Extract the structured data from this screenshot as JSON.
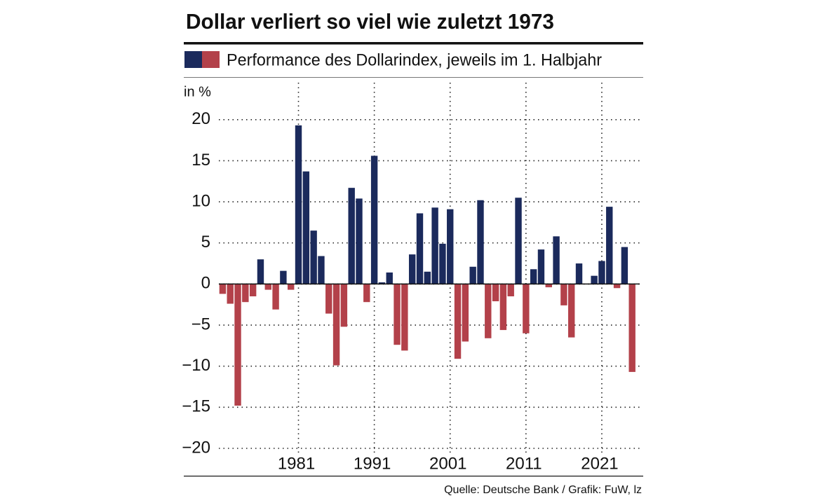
{
  "chart_data": {
    "type": "bar",
    "title": "Dollar verliert so viel wie zuletzt 1973",
    "legend_label": "Performance des Dollarindex, jeweils im 1. Halbjahr",
    "y_label": "in %",
    "source": "Quelle: Deutsche Bank / Grafik: FuW, lz",
    "positive_color": "#1b2a5c",
    "negative_color": "#b3414a",
    "x": [
      1971,
      1972,
      1973,
      1974,
      1975,
      1976,
      1977,
      1978,
      1979,
      1980,
      1981,
      1982,
      1983,
      1984,
      1985,
      1986,
      1987,
      1988,
      1989,
      1990,
      1991,
      1992,
      1993,
      1994,
      1995,
      1996,
      1997,
      1998,
      1999,
      2000,
      2001,
      2002,
      2003,
      2004,
      2005,
      2006,
      2007,
      2008,
      2009,
      2010,
      2011,
      2012,
      2013,
      2014,
      2015,
      2016,
      2017,
      2018,
      2019,
      2020,
      2021,
      2022,
      2023,
      2024,
      2025
    ],
    "values": [
      -1.2,
      -2.4,
      -14.8,
      -2.2,
      -1.5,
      3.0,
      -0.7,
      -3.1,
      1.6,
      -0.7,
      19.3,
      13.7,
      6.5,
      3.4,
      -3.6,
      -9.9,
      -5.2,
      11.7,
      10.4,
      -2.2,
      15.6,
      0.2,
      1.4,
      -7.4,
      -8.1,
      3.6,
      8.6,
      1.5,
      9.3,
      4.9,
      9.1,
      -9.1,
      -7.0,
      2.1,
      10.2,
      -6.6,
      -2.1,
      -5.6,
      -1.5,
      10.5,
      -6.0,
      1.8,
      4.2,
      -0.4,
      5.8,
      -2.6,
      -6.5,
      2.5,
      0,
      1.0,
      2.8,
      9.4,
      -0.5,
      4.5,
      -10.7
    ],
    "xlim": [
      1970.5,
      2026
    ],
    "xticks": [
      1981,
      1991,
      2001,
      2011,
      2021
    ],
    "ylim": [
      -20,
      24.5
    ],
    "yticks": [
      {
        "value": -20,
        "label": "−20"
      },
      {
        "value": -15,
        "label": "−15"
      },
      {
        "value": -10,
        "label": "−10"
      },
      {
        "value": -5,
        "label": "−5"
      },
      0,
      5,
      10,
      15,
      20
    ],
    "grid": true
  }
}
